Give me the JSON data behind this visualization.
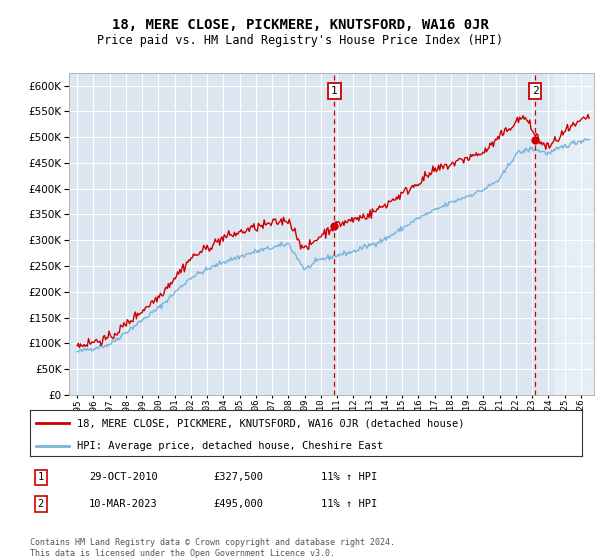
{
  "title": "18, MERE CLOSE, PICKMERE, KNUTSFORD, WA16 0JR",
  "subtitle": "Price paid vs. HM Land Registry's House Price Index (HPI)",
  "ylabel_values": [
    0,
    50000,
    100000,
    150000,
    200000,
    250000,
    300000,
    350000,
    400000,
    450000,
    500000,
    550000,
    600000
  ],
  "xlim_start": 1994.5,
  "xlim_end": 2026.8,
  "ylim": [
    0,
    625000
  ],
  "background_color": "#dce6f1",
  "grid_color": "#ffffff",
  "sale1_date": 2010.83,
  "sale1_price": 327500,
  "sale2_date": 2023.19,
  "sale2_price": 495000,
  "legend_line1": "18, MERE CLOSE, PICKMERE, KNUTSFORD, WA16 0JR (detached house)",
  "legend_line2": "HPI: Average price, detached house, Cheshire East",
  "table_row1": [
    "1",
    "29-OCT-2010",
    "£327,500",
    "11% ↑ HPI"
  ],
  "table_row2": [
    "2",
    "10-MAR-2023",
    "£495,000",
    "11% ↑ HPI"
  ],
  "footer": "Contains HM Land Registry data © Crown copyright and database right 2024.\nThis data is licensed under the Open Government Licence v3.0.",
  "hpi_color": "#7ab4d8",
  "price_color": "#cc0000",
  "marker_color": "#cc0000",
  "dashed_line_color": "#cc0000",
  "hatch_start": 2024.33
}
